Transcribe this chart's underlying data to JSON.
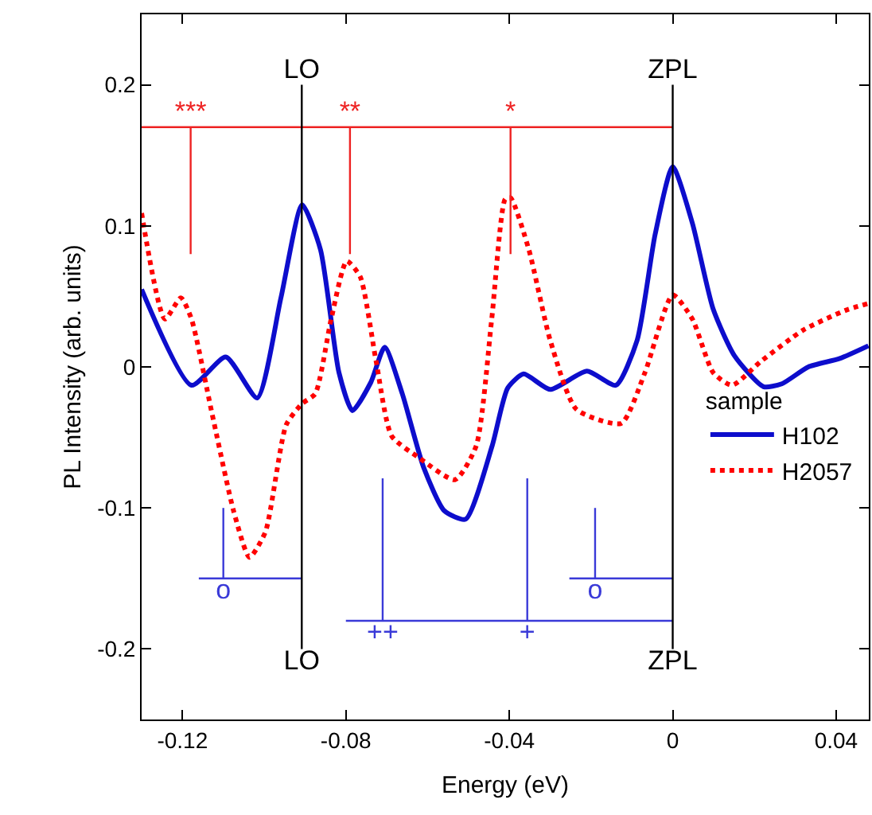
{
  "chart_data": {
    "type": "line",
    "xlabel": "Energy (eV)",
    "ylabel": "PL Intensity (arb. units)",
    "legend_title": "sample",
    "legend": "right",
    "marker": "none",
    "xlim": [
      -0.13,
      0.048
    ],
    "ylim": [
      -0.25,
      0.25
    ],
    "xticks": [
      -0.12,
      -0.08,
      -0.04,
      0,
      0.04
    ],
    "yticks": [
      -0.2,
      -0.1,
      0,
      0.1,
      0.2
    ],
    "series": [
      {
        "name": "H102",
        "color": "#0d0dcc",
        "line_style": "solid",
        "x": [
          -0.13,
          -0.1178,
          -0.1094,
          -0.1017,
          -0.0959,
          -0.0907,
          -0.0862,
          -0.0817,
          -0.0784,
          -0.0739,
          -0.0705,
          -0.0662,
          -0.061,
          -0.0559,
          -0.0507,
          -0.0442,
          -0.0404,
          -0.0365,
          -0.03,
          -0.021,
          -0.0139,
          -0.0087,
          -0.0043,
          0.0,
          0.0048,
          0.0099,
          0.0151,
          0.0222,
          0.0267,
          0.0332,
          0.0409,
          0.0479
        ],
        "values": [
          0.055,
          -0.013,
          0.007,
          -0.022,
          0.049,
          0.115,
          0.083,
          -0.004,
          -0.031,
          -0.011,
          0.014,
          -0.019,
          -0.071,
          -0.102,
          -0.108,
          -0.056,
          -0.015,
          -0.005,
          -0.016,
          -0.003,
          -0.013,
          0.019,
          0.094,
          0.142,
          0.102,
          0.041,
          0.008,
          -0.014,
          -0.012,
          0.0,
          0.006,
          0.015
        ]
      },
      {
        "name": "H2057",
        "color": "#ff0000",
        "line_style": "dotted",
        "x": [
          -0.13,
          -0.1243,
          -0.1204,
          -0.1178,
          -0.1127,
          -0.1075,
          -0.1036,
          -0.0997,
          -0.0946,
          -0.0907,
          -0.0875,
          -0.0836,
          -0.0798,
          -0.0765,
          -0.0726,
          -0.0688,
          -0.0623,
          -0.0533,
          -0.0481,
          -0.0443,
          -0.041,
          -0.0397,
          -0.0352,
          -0.03,
          -0.0236,
          -0.0126,
          -0.0068,
          0.0,
          0.0048,
          0.0099,
          0.0145,
          0.0216,
          0.0319,
          0.0422,
          0.0479
        ],
        "values": [
          0.109,
          0.034,
          0.049,
          0.034,
          -0.034,
          -0.102,
          -0.135,
          -0.117,
          -0.041,
          -0.026,
          -0.019,
          0.034,
          0.075,
          0.064,
          0.004,
          -0.049,
          -0.064,
          -0.08,
          -0.056,
          0.034,
          0.119,
          0.12,
          0.083,
          0.019,
          -0.03,
          -0.04,
          -0.004,
          0.051,
          0.034,
          -0.004,
          -0.013,
          0.004,
          0.026,
          0.04,
          0.045
        ]
      },
      {
        "color": "#ee2222",
        "line_style": "solid",
        "x": [
          -0.13,
          0.0
        ],
        "values": [
          0.17,
          0.17
        ]
      },
      {
        "color": "#ee2222",
        "line_style": "solid",
        "x": [
          -0.118,
          -0.118
        ],
        "values": [
          0.17,
          0.08
        ],
        "value_labels": [
          "***",
          null
        ]
      },
      {
        "color": "#ee2222",
        "line_style": "solid",
        "x": [
          -0.079,
          -0.079
        ],
        "values": [
          0.17,
          0.08
        ],
        "value_labels": [
          "**",
          null
        ]
      },
      {
        "color": "#ee2222",
        "line_style": "solid",
        "x": [
          -0.0397,
          -0.0397
        ],
        "values": [
          0.17,
          0.08
        ],
        "value_labels": [
          "*",
          null
        ]
      },
      {
        "color": "#3a3ad8",
        "line_style": "solid",
        "x": [
          -0.116,
          -0.0908
        ],
        "values": [
          -0.15,
          -0.15
        ]
      },
      {
        "color": "#3a3ad8",
        "line_style": "solid",
        "x": [
          -0.11,
          -0.11
        ],
        "values": [
          -0.15,
          -0.1
        ],
        "value_labels": [
          "o",
          null
        ]
      },
      {
        "color": "#3a3ad8",
        "line_style": "solid",
        "x": [
          -0.08,
          0.0
        ],
        "values": [
          -0.18,
          -0.18
        ]
      },
      {
        "color": "#3a3ad8",
        "line_style": "solid",
        "x": [
          -0.071,
          -0.071
        ],
        "values": [
          -0.18,
          -0.079
        ],
        "value_labels": [
          "++",
          null
        ]
      },
      {
        "color": "#3a3ad8",
        "line_style": "solid",
        "x": [
          -0.0356,
          -0.0356
        ],
        "values": [
          -0.18,
          -0.079
        ],
        "value_labels": [
          "+",
          null
        ]
      },
      {
        "color": "#3a3ad8",
        "line_style": "solid",
        "x": [
          -0.0253,
          0.0
        ],
        "values": [
          -0.15,
          -0.15
        ]
      },
      {
        "color": "#3a3ad8",
        "line_style": "solid",
        "x": [
          -0.019,
          -0.019
        ],
        "values": [
          -0.15,
          -0.1
        ],
        "value_labels": [
          "o",
          null
        ]
      },
      {
        "color": "#000000",
        "line_style": "solid",
        "x": [
          -0.0908,
          -0.0908
        ],
        "values": [
          0.2,
          -0.2
        ],
        "value_labels": [
          "LO",
          "LO"
        ]
      },
      {
        "color": "#000000",
        "line_style": "solid",
        "x": [
          0.0,
          0.0
        ],
        "values": [
          0.2,
          -0.2
        ],
        "value_labels": [
          "ZPL",
          "ZPL"
        ]
      }
    ]
  }
}
